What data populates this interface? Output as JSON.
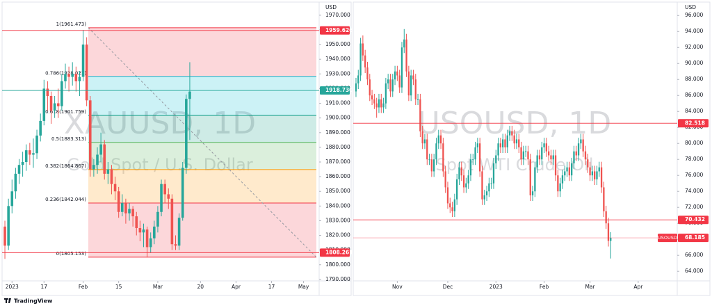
{
  "chart_data": [
    {
      "type": "candlestick",
      "title": "XAUUSD, 1D",
      "subtitle": "Gold Spot / U.S. Dollar",
      "currency": "USD",
      "up_color": "#26a69a",
      "down_color": "#ef5350",
      "xlim": [
        -0.4,
        87.6
      ],
      "xticks": [
        {
          "value": 2,
          "label": "2023"
        },
        {
          "value": 11,
          "label": "17"
        },
        {
          "value": 22,
          "label": "Feb"
        },
        {
          "value": 32,
          "label": "15"
        },
        {
          "value": 43,
          "label": "Mar"
        },
        {
          "value": 55,
          "label": "20"
        },
        {
          "value": 65,
          "label": "Apr"
        },
        {
          "value": 75,
          "label": "17"
        },
        {
          "value": 84,
          "label": "May"
        }
      ],
      "ylim": [
        1789,
        1978
      ],
      "yticks": [
        {
          "value": 1790,
          "label": "1790.000"
        },
        {
          "value": 1800,
          "label": "1800.000"
        },
        {
          "value": 1810,
          "label": "1810.000"
        },
        {
          "value": 1820,
          "label": "1820.000"
        },
        {
          "value": 1830,
          "label": "1830.000"
        },
        {
          "value": 1840,
          "label": "1840.000"
        },
        {
          "value": 1850,
          "label": "1850.000"
        },
        {
          "value": 1860,
          "label": "1860.000"
        },
        {
          "value": 1870,
          "label": "1870.000"
        },
        {
          "value": 1880,
          "label": "1880.000"
        },
        {
          "value": 1890,
          "label": "1890.000"
        },
        {
          "value": 1900,
          "label": "1900.000"
        },
        {
          "value": 1910,
          "label": "1910.000"
        },
        {
          "value": 1920,
          "label": "1920.000"
        },
        {
          "value": 1930,
          "label": "1930.000"
        },
        {
          "value": 1940,
          "label": "1940.000"
        },
        {
          "value": 1950,
          "label": "1950.000"
        },
        {
          "value": 1960,
          "label": "1960.000"
        },
        {
          "value": 1970,
          "label": "1970.000"
        }
      ],
      "open": [
        1826,
        1813,
        1840,
        1850,
        1862,
        1868,
        1870,
        1878,
        1875,
        1876,
        1888,
        1898,
        1920,
        1915,
        1905,
        1910,
        1908,
        1925,
        1930,
        1928,
        1930,
        1925,
        1928,
        1950,
        1912,
        1865,
        1868,
        1875,
        1882,
        1862,
        1865,
        1855,
        1850,
        1836,
        1842,
        1835,
        1838,
        1833,
        1825,
        1822,
        1824,
        1812,
        1818,
        1826,
        1836,
        1855,
        1848,
        1845,
        1814,
        1813,
        1832,
        1866,
        1913
      ],
      "high": [
        1830,
        1845,
        1858,
        1866,
        1872,
        1877,
        1882,
        1883,
        1886,
        1892,
        1903,
        1926,
        1925,
        1918,
        1915,
        1920,
        1930,
        1937,
        1935,
        1938,
        1935,
        1932,
        1960,
        1955,
        1915,
        1872,
        1880,
        1890,
        1885,
        1870,
        1868,
        1860,
        1853,
        1848,
        1845,
        1842,
        1840,
        1836,
        1830,
        1828,
        1826,
        1822,
        1830,
        1840,
        1858,
        1858,
        1852,
        1848,
        1820,
        1835,
        1870,
        1916,
        1938
      ],
      "low": [
        1804,
        1810,
        1835,
        1845,
        1855,
        1860,
        1864,
        1868,
        1866,
        1872,
        1884,
        1895,
        1905,
        1896,
        1900,
        1900,
        1905,
        1920,
        1918,
        1922,
        1918,
        1915,
        1925,
        1908,
        1860,
        1860,
        1862,
        1870,
        1858,
        1855,
        1848,
        1844,
        1832,
        1833,
        1828,
        1830,
        1826,
        1820,
        1816,
        1812,
        1805,
        1808,
        1814,
        1822,
        1833,
        1842,
        1838,
        1810,
        1810,
        1810,
        1830,
        1862,
        1885
      ],
      "close": [
        1813,
        1840,
        1850,
        1862,
        1868,
        1870,
        1878,
        1875,
        1876,
        1888,
        1898,
        1920,
        1915,
        1905,
        1910,
        1908,
        1925,
        1930,
        1928,
        1930,
        1925,
        1928,
        1950,
        1912,
        1865,
        1868,
        1875,
        1882,
        1862,
        1865,
        1855,
        1850,
        1836,
        1842,
        1835,
        1838,
        1833,
        1825,
        1822,
        1824,
        1812,
        1818,
        1826,
        1836,
        1855,
        1848,
        1845,
        1814,
        1813,
        1832,
        1866,
        1913,
        1918
      ],
      "fib_levels": [
        {
          "value": 1961.473,
          "label": "1(1961.473)",
          "color": "#f23645"
        },
        {
          "value": 1928.021,
          "label": "0.786(1928.021)",
          "color": "#00bcd4"
        },
        {
          "value": 1901.759,
          "label": "0.618(1901.759)",
          "color": "#089981"
        },
        {
          "value": 1883.313,
          "label": "0.5(1883.313)",
          "color": "#4caf50"
        },
        {
          "value": 1864.867,
          "label": "0.382(1864.867)",
          "color": "#ff9800"
        },
        {
          "value": 1842.044,
          "label": "0.236(1842.044)",
          "color": "#f23645"
        },
        {
          "value": 1805.153,
          "label": "0(1805.153)",
          "color": "#f23645"
        }
      ],
      "price_lines": [
        {
          "value": 1959.626,
          "color": "#f23645"
        },
        {
          "value": 1918.73,
          "label": "1918.730",
          "color": "#26a69a"
        },
        {
          "value": 1808.261,
          "color": "#f23645"
        }
      ]
    },
    {
      "type": "candlestick",
      "title": "USOUSD, 1D",
      "subtitle": "Spot WTI Crude Oil",
      "currency": "USD",
      "up_color": "#26a69a",
      "down_color": "#ef5350",
      "xlim": [
        -0.6,
        138.8
      ],
      "xticks": [
        {
          "value": 18,
          "label": "Nov"
        },
        {
          "value": 40,
          "label": "Dec"
        },
        {
          "value": 61,
          "label": "2023"
        },
        {
          "value": 82,
          "label": "Feb"
        },
        {
          "value": 102,
          "label": "Mar"
        },
        {
          "value": 123,
          "label": "Apr"
        }
      ],
      "ylim": [
        62.8,
        97.5
      ],
      "yticks": [
        {
          "value": 64,
          "label": "64.000"
        },
        {
          "value": 66,
          "label": "66.000"
        },
        {
          "value": 68,
          "label": "68.000"
        },
        {
          "value": 70,
          "label": "70.000"
        },
        {
          "value": 72,
          "label": "72.000"
        },
        {
          "value": 74,
          "label": "74.000"
        },
        {
          "value": 76,
          "label": "76.000"
        },
        {
          "value": 78,
          "label": "78.000"
        },
        {
          "value": 80,
          "label": "80.000"
        },
        {
          "value": 82,
          "label": "82.000"
        },
        {
          "value": 84,
          "label": "84.000"
        },
        {
          "value": 86,
          "label": "86.000"
        },
        {
          "value": 88,
          "label": "88.000"
        },
        {
          "value": 90,
          "label": "90.000"
        },
        {
          "value": 92,
          "label": "92.000"
        },
        {
          "value": 94,
          "label": "94.000"
        },
        {
          "value": 96,
          "label": "96.000"
        }
      ],
      "open": [
        86.5,
        87.5,
        88.5,
        92.5,
        91.0,
        89.5,
        88.0,
        86.0,
        85.5,
        85.0,
        84.5,
        85.5,
        84.5,
        85.0,
        87.5,
        88.0,
        86.5,
        88.0,
        89.0,
        88.5,
        87.0,
        92.0,
        93.0,
        89.0,
        86.0,
        88.5,
        88.0,
        85.5,
        85.5,
        81.5,
        80.0,
        80.5,
        78.0,
        78.0,
        76.5,
        78.0,
        80.0,
        81.0,
        80.0,
        76.5,
        74.5,
        72.5,
        72.0,
        71.5,
        73.0,
        75.5,
        77.0,
        76.0,
        74.5,
        75.0,
        76.0,
        78.0,
        78.0,
        79.5,
        80.0,
        76.5,
        73.0,
        73.5,
        74.0,
        75.0,
        75.0,
        77.5,
        78.5,
        80.0,
        79.5,
        80.5,
        79.5,
        81.0,
        81.5,
        81.0,
        80.0,
        80.5,
        79.5,
        78.0,
        79.0,
        79.0,
        78.0,
        73.5,
        74.0,
        77.0,
        78.5,
        78.0,
        79.5,
        80.0,
        79.0,
        78.5,
        78.0,
        78.5,
        76.0,
        74.0,
        75.0,
        76.0,
        76.5,
        77.0,
        76.0,
        77.5,
        79.0,
        78.5,
        80.0,
        80.5,
        79.0,
        78.0,
        77.0,
        76.0,
        76.5,
        75.5,
        76.5,
        77.0,
        74.5,
        71.5,
        70.0,
        67.8
      ],
      "high": [
        88.2,
        89.2,
        93.2,
        93.5,
        91.7,
        90.2,
        88.7,
        86.7,
        86.2,
        85.7,
        86.2,
        86.2,
        85.7,
        88.2,
        88.7,
        88.7,
        88.7,
        89.7,
        89.7,
        89.2,
        92.7,
        94.3,
        93.7,
        89.7,
        89.2,
        89.2,
        88.7,
        86.2,
        86.2,
        82.2,
        81.2,
        81.2,
        78.7,
        78.7,
        78.7,
        80.7,
        81.7,
        81.7,
        80.7,
        77.2,
        75.2,
        73.2,
        72.7,
        73.7,
        76.2,
        77.7,
        77.7,
        76.7,
        75.7,
        76.7,
        78.7,
        78.7,
        80.2,
        80.7,
        80.7,
        77.2,
        74.2,
        74.7,
        75.7,
        75.7,
        78.2,
        79.2,
        80.7,
        80.7,
        81.2,
        81.2,
        81.7,
        82.2,
        82.2,
        81.7,
        81.2,
        81.2,
        80.2,
        79.7,
        79.7,
        79.7,
        78.7,
        74.7,
        77.7,
        79.2,
        79.2,
        80.2,
        80.7,
        80.7,
        79.7,
        79.2,
        79.2,
        79.2,
        76.7,
        75.7,
        76.7,
        77.2,
        77.7,
        77.7,
        78.2,
        79.7,
        79.7,
        80.7,
        81.2,
        81.2,
        79.7,
        78.7,
        77.7,
        77.2,
        77.2,
        77.2,
        77.7,
        77.7,
        75.2,
        72.2,
        70.7,
        68.9
      ],
      "low": [
        85.8,
        86.8,
        87.8,
        90.3,
        88.8,
        87.3,
        85.3,
        84.8,
        84.3,
        83.2,
        83.8,
        83.8,
        83.8,
        84.3,
        86.8,
        85.8,
        85.8,
        87.3,
        87.8,
        86.3,
        86.3,
        91.3,
        88.3,
        85.3,
        85.3,
        87.3,
        84.8,
        84.8,
        80.8,
        79.3,
        79.3,
        77.3,
        77.3,
        75.8,
        75.8,
        77.3,
        79.3,
        79.3,
        75.8,
        73.8,
        71.8,
        71.3,
        70.8,
        70.8,
        72.3,
        74.8,
        75.3,
        73.8,
        73.8,
        74.3,
        75.3,
        77.3,
        77.3,
        78.8,
        75.8,
        72.3,
        72.3,
        72.8,
        73.3,
        74.3,
        74.3,
        76.8,
        77.8,
        78.8,
        78.8,
        78.8,
        78.8,
        80.3,
        80.3,
        79.3,
        79.3,
        78.8,
        77.3,
        77.3,
        78.3,
        77.3,
        72.8,
        72.8,
        73.3,
        76.3,
        77.3,
        77.3,
        78.8,
        78.3,
        77.8,
        77.3,
        77.3,
        75.3,
        73.3,
        73.3,
        74.3,
        75.3,
        75.8,
        75.3,
        75.3,
        76.8,
        77.8,
        77.8,
        79.3,
        78.3,
        77.3,
        76.3,
        75.3,
        75.3,
        74.8,
        74.8,
        75.8,
        73.8,
        70.8,
        69.3,
        67.1,
        65.6
      ],
      "close": [
        87.5,
        88.5,
        92.5,
        91.0,
        89.5,
        88.0,
        86.0,
        85.5,
        85.0,
        84.5,
        85.5,
        84.5,
        85.0,
        87.5,
        88.0,
        86.5,
        88.0,
        89.0,
        88.5,
        87.0,
        92.0,
        93.0,
        89.0,
        86.0,
        88.5,
        88.0,
        85.5,
        85.5,
        81.5,
        80.0,
        80.5,
        78.0,
        78.0,
        76.5,
        78.0,
        80.0,
        81.0,
        80.0,
        76.5,
        74.5,
        72.5,
        72.0,
        71.5,
        73.0,
        75.5,
        77.0,
        76.0,
        74.5,
        75.0,
        76.0,
        78.0,
        78.0,
        79.5,
        80.0,
        76.5,
        73.0,
        73.5,
        74.0,
        75.0,
        75.0,
        77.5,
        78.5,
        80.0,
        79.5,
        80.5,
        79.5,
        81.0,
        81.5,
        81.0,
        80.0,
        80.5,
        79.5,
        78.0,
        79.0,
        79.0,
        78.0,
        73.5,
        74.0,
        77.0,
        78.5,
        78.0,
        79.5,
        80.0,
        79.0,
        78.5,
        78.0,
        78.5,
        76.0,
        74.0,
        75.0,
        76.0,
        76.5,
        77.0,
        76.0,
        77.5,
        79.0,
        78.5,
        80.0,
        80.5,
        79.0,
        78.0,
        77.0,
        76.0,
        76.5,
        75.5,
        76.5,
        77.0,
        74.5,
        71.5,
        70.0,
        67.8,
        68.185
      ],
      "price_lines": [
        {
          "value": 82.518,
          "color": "#f23645"
        },
        {
          "value": 70.432,
          "color": "#f23645"
        },
        {
          "value": 68.185,
          "tag": "USOUSD",
          "color": "#f23645"
        }
      ]
    }
  ],
  "footer": {
    "brand": "TradingView"
  }
}
